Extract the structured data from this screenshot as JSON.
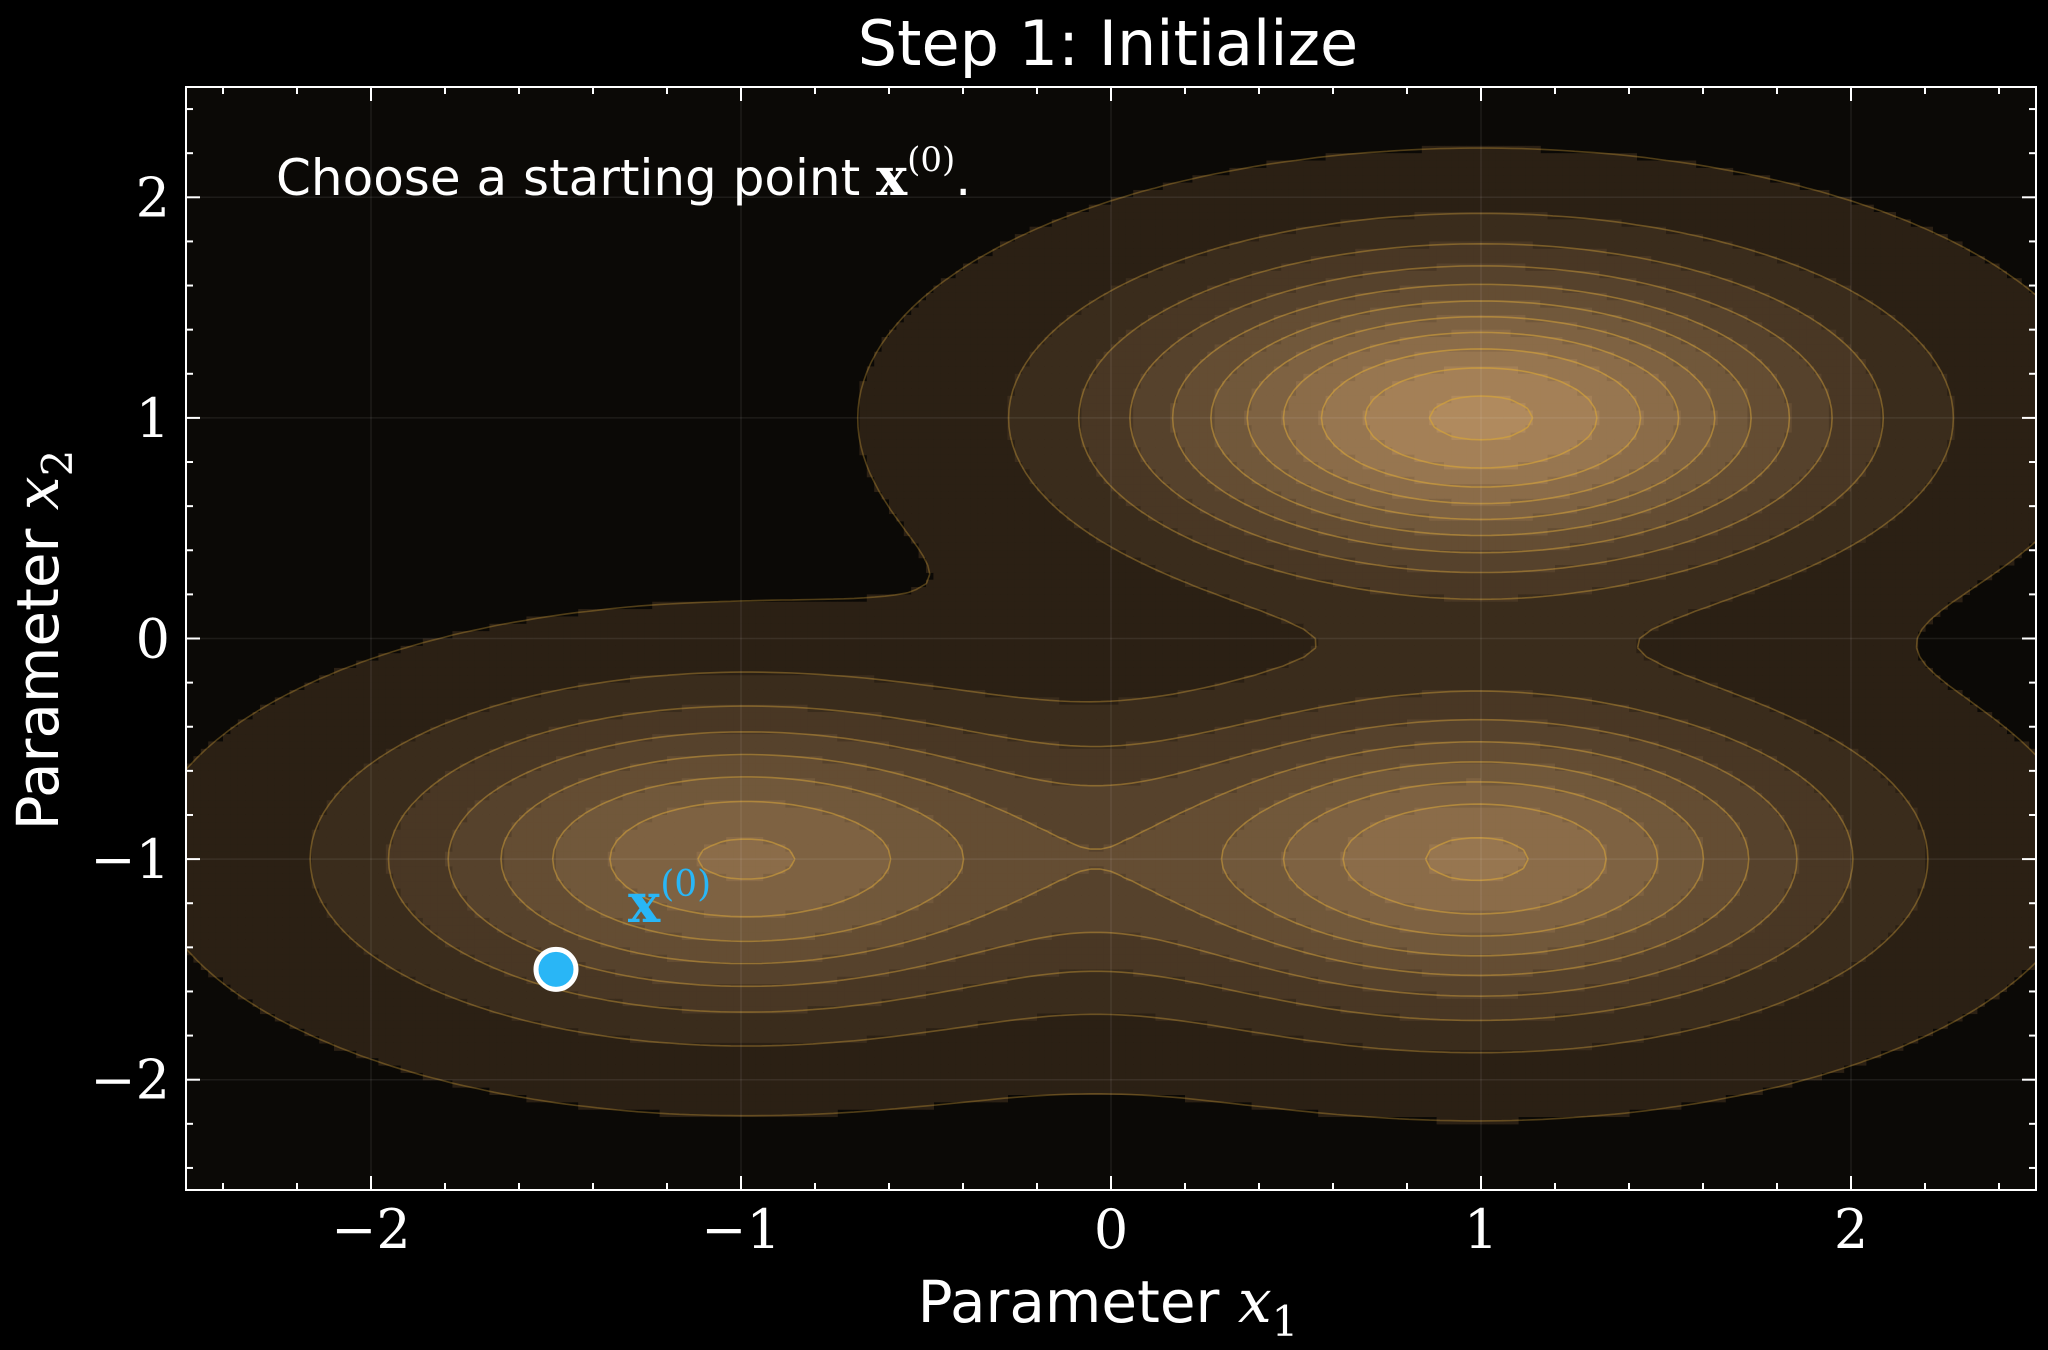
{
  "chart_data": {
    "type": "contour",
    "title": "Step 1: Initialize",
    "xlabel": {
      "text": "Parameter ",
      "var": "x",
      "sub": "1"
    },
    "ylabel": {
      "text": "Parameter ",
      "var": "x",
      "sub": "2"
    },
    "xlim": [
      -2.5,
      2.5
    ],
    "ylim": [
      -2.5,
      2.5
    ],
    "xticks": [
      -2,
      -1,
      0,
      1,
      2
    ],
    "yticks": [
      -2,
      -1,
      0,
      1,
      2
    ],
    "xtick_labels": [
      "−2",
      "−1",
      "0",
      "1",
      "2"
    ],
    "ytick_labels": [
      "−2",
      "−1",
      "0",
      "1",
      "2"
    ],
    "grid": true,
    "surface": {
      "kind": "sum of gaussian bumps",
      "peaks": [
        {
          "x": 1.0,
          "y": 1.0,
          "amp": 1.0,
          "sx": 0.62,
          "sy": 0.45
        },
        {
          "x": 1.0,
          "y": -1.0,
          "amp": 0.8,
          "sx": 0.62,
          "sy": 0.45
        },
        {
          "x": -1.0,
          "y": -1.0,
          "amp": 0.7,
          "sx": 0.62,
          "sy": 0.45
        }
      ],
      "levels": 11
    },
    "colors": {
      "background": "#000000",
      "axes_bg": "#0b0906",
      "contour_fill_low": "#1a120a",
      "contour_fill_high": "#b08a5e",
      "contour_line": "#d4a23a",
      "marker": "#29b6f6",
      "marker_edge": "#ffffff",
      "text": "#ffffff"
    },
    "annotation": {
      "text": "Choose a starting point ",
      "math": "x",
      "sup": "(0)",
      "tail": "."
    },
    "points": [
      {
        "name": "start",
        "x": -1.5,
        "y": -1.5,
        "label": "x",
        "label_sup": "(0)",
        "color": "#29b6f6"
      }
    ]
  }
}
